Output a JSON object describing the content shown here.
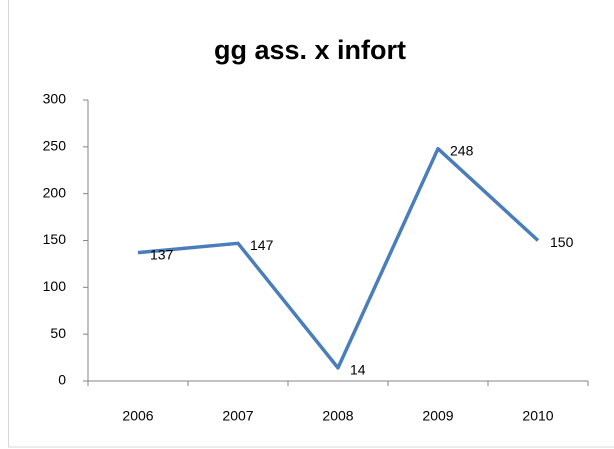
{
  "chart_data": {
    "type": "line",
    "title": "gg ass. x infort",
    "categories": [
      "2006",
      "2007",
      "2008",
      "2009",
      "2010"
    ],
    "values": [
      137,
      147,
      14,
      248,
      150
    ],
    "color": "#4a7ebb",
    "ylim": [
      0,
      300
    ],
    "yticks": [
      0,
      50,
      100,
      150,
      200,
      250,
      300
    ],
    "grid": false
  }
}
